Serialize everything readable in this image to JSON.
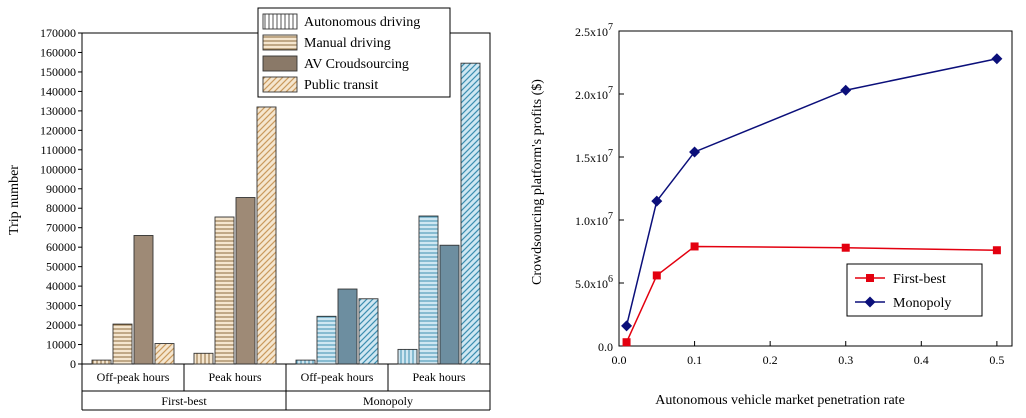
{
  "chart_data": [
    {
      "type": "bar",
      "title": "",
      "xlabel": "",
      "ylabel": "Trip number",
      "ylim": [
        0,
        170000
      ],
      "yticks": [
        0,
        10000,
        20000,
        30000,
        40000,
        50000,
        60000,
        70000,
        80000,
        90000,
        100000,
        110000,
        120000,
        130000,
        140000,
        150000,
        160000,
        170000
      ],
      "groups": [
        "First-best",
        "Monopoly"
      ],
      "categories": [
        "Off-peak hours",
        "Peak hours",
        "Off-peak hours",
        "Peak hours"
      ],
      "category_group": [
        0,
        0,
        1,
        1
      ],
      "legend_position": "top-center",
      "series": [
        {
          "name": "Autonomous driving",
          "pattern": "vertical-lines",
          "values": [
            2000,
            5500,
            2000,
            7500
          ]
        },
        {
          "name": "Manual driving",
          "pattern": "horizontal-lines",
          "values": [
            20500,
            75500,
            24500,
            76000
          ]
        },
        {
          "name": "AV Croudsourcing",
          "pattern": "solid",
          "values": [
            66000,
            85500,
            38500,
            61000
          ]
        },
        {
          "name": "Public transit",
          "pattern": "diagonal-lines",
          "values": [
            10500,
            132000,
            33500,
            154500
          ]
        }
      ],
      "colors": {
        "First-best": {
          "fill": "#f5e6cf",
          "stroke": "#8c6a3c",
          "solid": "#9e8a76"
        },
        "Monopoly": {
          "fill": "#cfe7f2",
          "stroke": "#3d8fb0",
          "solid": "#6d8ea0"
        }
      }
    },
    {
      "type": "line",
      "title": "",
      "xlabel": "Autonomous vehicle market penetration rate",
      "ylabel": "Crowdsourcing platform's profits ($)",
      "xlim": [
        0,
        0.52
      ],
      "ylim": [
        0,
        25000000
      ],
      "xticks": [
        0.0,
        0.1,
        0.2,
        0.3,
        0.4,
        0.5
      ],
      "xtick_labels": [
        "0.0",
        "0.1",
        "0.2",
        "0.3",
        "0.4",
        "0.5"
      ],
      "yticks": [
        0,
        5000000,
        10000000,
        15000000,
        20000000,
        25000000
      ],
      "ytick_labels": [
        {
          "mantissa": "0.0",
          "exp": ""
        },
        {
          "mantissa": "5.0x10",
          "exp": "6"
        },
        {
          "mantissa": "1.0x10",
          "exp": "7"
        },
        {
          "mantissa": "1.5x10",
          "exp": "7"
        },
        {
          "mantissa": "2.0x10",
          "exp": "7"
        },
        {
          "mantissa": "2.5x10",
          "exp": "7"
        }
      ],
      "legend_position": "bottom-right",
      "series": [
        {
          "name": "First-best",
          "color": "#e3000f",
          "marker": "square",
          "x": [
            0.01,
            0.05,
            0.1,
            0.3,
            0.5
          ],
          "y": [
            300000,
            5600000,
            7900000,
            7800000,
            7600000
          ]
        },
        {
          "name": "Monopoly",
          "color": "#0b0f7a",
          "marker": "diamond",
          "x": [
            0.01,
            0.05,
            0.1,
            0.3,
            0.5
          ],
          "y": [
            1600000,
            11500000,
            15400000,
            20300000,
            22800000
          ]
        }
      ]
    }
  ]
}
